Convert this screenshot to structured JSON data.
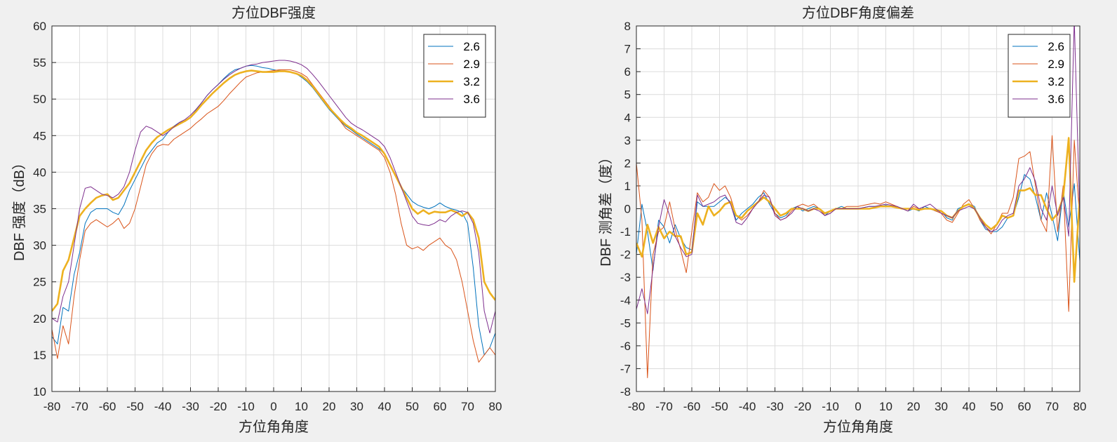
{
  "chart_data": [
    {
      "type": "line",
      "title": "方位DBF强度",
      "xlabel": "方位角角度",
      "ylabel": "DBF 强度（dB）",
      "xlim": [
        -80,
        80
      ],
      "ylim": [
        10,
        60
      ],
      "xticks": [
        "-80",
        "-70",
        "-60",
        "-50",
        "-40",
        "-30",
        "-20",
        "-10",
        "0",
        "10",
        "20",
        "30",
        "40",
        "50",
        "60",
        "70",
        "80"
      ],
      "yticks": [
        "10",
        "15",
        "20",
        "25",
        "30",
        "35",
        "40",
        "45",
        "50",
        "55",
        "60"
      ],
      "grid": true,
      "legend": "top-right",
      "x": [
        -80,
        -78,
        -76,
        -74,
        -72,
        -70,
        -68,
        -66,
        -64,
        -62,
        -60,
        -58,
        -56,
        -54,
        -52,
        -50,
        -48,
        -46,
        -44,
        -42,
        -40,
        -38,
        -36,
        -34,
        -32,
        -30,
        -28,
        -26,
        -24,
        -22,
        -20,
        -18,
        -16,
        -14,
        -12,
        -10,
        -8,
        -6,
        -4,
        -2,
        0,
        2,
        4,
        6,
        8,
        10,
        12,
        14,
        16,
        18,
        20,
        22,
        24,
        26,
        28,
        30,
        32,
        34,
        36,
        38,
        40,
        42,
        44,
        46,
        48,
        50,
        52,
        54,
        56,
        58,
        60,
        62,
        64,
        66,
        68,
        70,
        72,
        74,
        76,
        78,
        80
      ],
      "series": [
        {
          "name": "2.6",
          "color": "#0072bd",
          "width": 1,
          "values": [
            17.5,
            16.5,
            21.5,
            21,
            26,
            29,
            33,
            34.5,
            35,
            35,
            35,
            34.5,
            34.2,
            35.5,
            37.5,
            39,
            40.5,
            42,
            43,
            44,
            44.5,
            45.5,
            46.3,
            46.8,
            47,
            47.5,
            48.5,
            49.5,
            50.5,
            51.3,
            52,
            52.8,
            53.5,
            54,
            54.2,
            54.5,
            54.6,
            54.5,
            54.3,
            54.2,
            54,
            53.9,
            53.8,
            53.7,
            53.5,
            53,
            52.4,
            51.6,
            50.6,
            49.6,
            48.6,
            47.8,
            47,
            46.3,
            45.8,
            45.2,
            44.7,
            44.2,
            43.7,
            43.2,
            42.5,
            41,
            39.5,
            38,
            37,
            36,
            35.5,
            35.2,
            35,
            35.3,
            35.8,
            35.3,
            35,
            34.8,
            34.5,
            33,
            27,
            19,
            15,
            16,
            18
          ]
        },
        {
          "name": "2.9",
          "color": "#d95319",
          "width": 1,
          "values": [
            18.5,
            14.5,
            19,
            16.5,
            23,
            28,
            32,
            33,
            33.5,
            33,
            32.5,
            33,
            33.7,
            32.3,
            33,
            35,
            38,
            41,
            42.5,
            43.5,
            43.8,
            43.7,
            44.5,
            45,
            45.5,
            46,
            46.7,
            47.3,
            48,
            48.5,
            49,
            49.8,
            50.7,
            51.5,
            52.3,
            53,
            53.3,
            53.6,
            53.7,
            53.8,
            53.9,
            54,
            54,
            54,
            53.8,
            53.5,
            53,
            52,
            51,
            50,
            49,
            48,
            47,
            46,
            45.5,
            45,
            44.5,
            44,
            43.5,
            43,
            42,
            40,
            37,
            33,
            30,
            29.5,
            29.8,
            29.3,
            30,
            30.5,
            31,
            30,
            29.5,
            28,
            25,
            21,
            17,
            14,
            15,
            16,
            15
          ]
        },
        {
          "name": "3.2",
          "color": "#edb120",
          "width": 2.6,
          "values": [
            21,
            22,
            26.5,
            28,
            31,
            34,
            35,
            35.8,
            36.5,
            36.8,
            37,
            36.2,
            36.5,
            37.5,
            38.5,
            40,
            41.5,
            43,
            44,
            44.8,
            45.3,
            45.8,
            46.2,
            46.6,
            47,
            47.5,
            48.3,
            49.2,
            50,
            50.8,
            51.5,
            52.2,
            52.8,
            53.3,
            53.6,
            53.8,
            53.9,
            53.8,
            53.7,
            53.7,
            53.7,
            53.8,
            53.8,
            53.7,
            53.5,
            53.2,
            52.6,
            51.8,
            50.8,
            49.8,
            48.8,
            48,
            47.2,
            46.5,
            46,
            45.4,
            45,
            44.5,
            44,
            43.5,
            42.5,
            41,
            39.5,
            38,
            36.5,
            35,
            34.3,
            34.8,
            34.3,
            34.6,
            34.5,
            34.5,
            34.8,
            34.5,
            34,
            34.5,
            33.5,
            31,
            25,
            23.5,
            22.5
          ]
        },
        {
          "name": "3.6",
          "color": "#7e2f8e",
          "width": 1,
          "values": [
            20,
            19.5,
            23,
            25,
            30,
            35,
            37.8,
            38,
            37.5,
            37,
            36.8,
            36.5,
            37,
            38,
            40,
            43,
            45.5,
            46.3,
            46,
            45.5,
            45,
            45.5,
            46.2,
            46.8,
            47.2,
            47.8,
            48.6,
            49.5,
            50.5,
            51.3,
            52,
            52.7,
            53.3,
            53.8,
            54.2,
            54.5,
            54.7,
            54.8,
            55,
            55.1,
            55.2,
            55.3,
            55.3,
            55.2,
            55,
            54.7,
            54.2,
            53.4,
            52.5,
            51.5,
            50.5,
            49.5,
            48.5,
            47.5,
            46.7,
            46.2,
            45.8,
            45.3,
            44.8,
            44.3,
            43.5,
            42,
            40,
            38,
            36,
            34,
            33,
            32.8,
            32.7,
            33,
            33.5,
            33.2,
            34,
            34.5,
            34.7,
            34.5,
            33,
            29,
            21,
            18,
            21
          ]
        }
      ]
    },
    {
      "type": "line",
      "title": "方位DBF角度偏差",
      "xlabel": "方位角角度",
      "ylabel": "DBF 测角差（度）",
      "xlim": [
        -80,
        80
      ],
      "ylim": [
        -8,
        8
      ],
      "xticks": [
        "-80",
        "-70",
        "-60",
        "-50",
        "-40",
        "-30",
        "-20",
        "-10",
        "0",
        "10",
        "20",
        "30",
        "40",
        "50",
        "60",
        "70",
        "80"
      ],
      "yticks": [
        "-8",
        "-7",
        "-6",
        "-5",
        "-4",
        "-3",
        "-2",
        "-1",
        "0",
        "1",
        "2",
        "3",
        "4",
        "5",
        "6",
        "7",
        "8"
      ],
      "grid": true,
      "legend": "top-right",
      "x": [
        -80,
        -78,
        -76,
        -74,
        -72,
        -70,
        -68,
        -66,
        -64,
        -62,
        -60,
        -58,
        -56,
        -54,
        -52,
        -50,
        -48,
        -46,
        -44,
        -42,
        -40,
        -38,
        -36,
        -34,
        -32,
        -30,
        -28,
        -26,
        -24,
        -22,
        -20,
        -18,
        -16,
        -14,
        -12,
        -10,
        -8,
        -6,
        -4,
        -2,
        0,
        2,
        4,
        6,
        8,
        10,
        12,
        14,
        16,
        18,
        20,
        22,
        24,
        26,
        28,
        30,
        32,
        34,
        36,
        38,
        40,
        42,
        44,
        46,
        48,
        50,
        52,
        54,
        56,
        58,
        60,
        62,
        64,
        66,
        68,
        70,
        72,
        74,
        76,
        78,
        80
      ],
      "series": [
        {
          "name": "2.6",
          "color": "#0072bd",
          "width": 1,
          "values": [
            -2,
            0.2,
            -1,
            -2.7,
            -0.5,
            -0.8,
            -1.5,
            -0.7,
            -1.3,
            -1.7,
            -1.8,
            0.3,
            0.1,
            0.1,
            0.1,
            0.3,
            0.5,
            0.3,
            -0.5,
            -0.2,
            0,
            0.2,
            0.5,
            0.7,
            0.2,
            -0.2,
            -0.4,
            -0.3,
            0,
            0.1,
            -0.1,
            0,
            0.1,
            0,
            -0.3,
            -0.1,
            0,
            0.1,
            0,
            0,
            0,
            0.05,
            0.1,
            0.1,
            0.1,
            0.15,
            0.1,
            0.1,
            0,
            -0.1,
            0,
            -0.1,
            0.1,
            0,
            -0.1,
            -0.1,
            -0.4,
            -0.5,
            0,
            0.1,
            0.2,
            0.1,
            -0.5,
            -0.9,
            -1,
            -1,
            -0.8,
            -0.4,
            -0.3,
            0.5,
            1.5,
            1.3,
            0.5,
            -0.5,
            0.7,
            -0.3,
            -1.4,
            0.8,
            -0.8,
            1.1,
            -2.3
          ]
        },
        {
          "name": "2.9",
          "color": "#d95319",
          "width": 1,
          "values": [
            2,
            -0.5,
            -7.4,
            -2,
            -1,
            -0.8,
            0.3,
            -0.9,
            -1.8,
            -2.8,
            -1,
            0.7,
            0.3,
            0.5,
            1.1,
            0.8,
            1,
            0.5,
            -0.3,
            -0.5,
            -0.3,
            0,
            0.3,
            0.8,
            0.5,
            -0.2,
            -0.5,
            -0.4,
            -0.1,
            0.1,
            0.2,
            0.1,
            0.2,
            0,
            -0.3,
            -0.2,
            0,
            0,
            0.1,
            0.1,
            0.1,
            0.15,
            0.2,
            0.25,
            0.2,
            0.3,
            0.2,
            0.1,
            0,
            -0.1,
            0.1,
            0,
            0,
            0,
            -0.1,
            -0.2,
            -0.5,
            -0.6,
            -0.2,
            0.2,
            0.4,
            0,
            -0.5,
            -0.8,
            -1.1,
            -0.7,
            -0.2,
            -0.2,
            0.5,
            2.2,
            2.3,
            2.5,
            1,
            -0.5,
            -1,
            3.2,
            -1,
            1,
            -4.5,
            3,
            -0.5
          ]
        },
        {
          "name": "3.2",
          "color": "#edb120",
          "width": 2.6,
          "values": [
            -1.5,
            -2.1,
            -0.7,
            -1.5,
            -0.8,
            -1.3,
            -1,
            -1.2,
            -1.2,
            -2,
            -1.9,
            -0.2,
            -0.7,
            0.1,
            -0.3,
            -0.1,
            0.2,
            0.3,
            -0.3,
            -0.4,
            -0.1,
            0.1,
            0.3,
            0.5,
            0.3,
            0,
            -0.3,
            -0.2,
            0,
            0,
            0,
            -0.1,
            0,
            0,
            -0.2,
            -0.1,
            0,
            0,
            0,
            0,
            0,
            0,
            0,
            0.05,
            0.1,
            0.1,
            0.1,
            0.05,
            0,
            0,
            0,
            -0.05,
            0,
            0,
            -0.05,
            -0.1,
            -0.3,
            -0.4,
            -0.1,
            0.1,
            0.2,
            0,
            -0.4,
            -0.7,
            -0.9,
            -0.7,
            -0.3,
            -0.4,
            -0.3,
            0.8,
            0.8,
            0.9,
            0.6,
            0.6,
            0,
            -0.5,
            -0.2,
            0.5,
            3.1,
            -3.2,
            0.5
          ]
        },
        {
          "name": "3.6",
          "color": "#7e2f8e",
          "width": 1,
          "values": [
            -4.4,
            -3.5,
            -4.6,
            -2.6,
            -0.8,
            0.4,
            -0.3,
            -1.2,
            -1.7,
            -2.1,
            -2,
            0.6,
            0.1,
            0.2,
            0.3,
            0.5,
            0.6,
            0.2,
            -0.6,
            -0.7,
            -0.4,
            0,
            0.3,
            0.6,
            0.5,
            -0.3,
            -0.5,
            -0.4,
            -0.2,
            0.1,
            0,
            -0.1,
            0,
            -0.1,
            -0.3,
            -0.2,
            0,
            0,
            0,
            0,
            0,
            0.05,
            0.1,
            0.1,
            0.15,
            0.2,
            0.15,
            0.1,
            0,
            -0.1,
            0.2,
            0,
            0.1,
            0.2,
            0,
            -0.2,
            -0.3,
            -0.4,
            -0.1,
            0,
            0.1,
            0,
            -0.4,
            -0.8,
            -1,
            -0.9,
            -0.5,
            -0.3,
            -0.2,
            1,
            1.3,
            1.8,
            1.2,
            0,
            -0.5,
            1,
            -0.3,
            0.5,
            -1.2,
            8.3,
            -0.4
          ]
        }
      ]
    }
  ]
}
